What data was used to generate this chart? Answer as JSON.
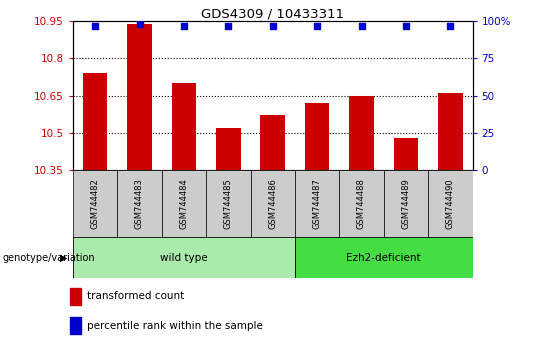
{
  "title": "GDS4309 / 10433311",
  "samples": [
    "GSM744482",
    "GSM744483",
    "GSM744484",
    "GSM744485",
    "GSM744486",
    "GSM744487",
    "GSM744488",
    "GSM744489",
    "GSM744490"
  ],
  "bar_values": [
    10.74,
    10.94,
    10.7,
    10.52,
    10.57,
    10.62,
    10.65,
    10.48,
    10.66
  ],
  "percentile_values": [
    97,
    98,
    97,
    97,
    97,
    97,
    97,
    97,
    97
  ],
  "ylim_left": [
    10.35,
    10.95
  ],
  "ylim_right": [
    0,
    100
  ],
  "yticks_left": [
    10.35,
    10.5,
    10.65,
    10.8,
    10.95
  ],
  "ytick_labels_left": [
    "10.35",
    "10.5",
    "10.65",
    "10.8",
    "10.95"
  ],
  "yticks_right": [
    0,
    25,
    50,
    75,
    100
  ],
  "ytick_labels_right": [
    "0",
    "25",
    "50",
    "75",
    "100%"
  ],
  "bar_color": "#cc0000",
  "dot_color": "#0000cc",
  "groups": [
    {
      "label": "wild type",
      "start": 0,
      "end": 4
    },
    {
      "label": "Ezh2-deficient",
      "start": 5,
      "end": 8
    }
  ],
  "group_wt_color": "#aaeaaa",
  "group_ez_color": "#44dd44",
  "group_label": "genotype/variation",
  "legend_items": [
    {
      "color": "#cc0000",
      "label": "transformed count"
    },
    {
      "color": "#0000cc",
      "label": "percentile rank within the sample"
    }
  ],
  "bar_width": 0.55,
  "tick_color_left": "#cc0000",
  "tick_color_right": "#0000cc",
  "sample_box_color": "#cccccc"
}
